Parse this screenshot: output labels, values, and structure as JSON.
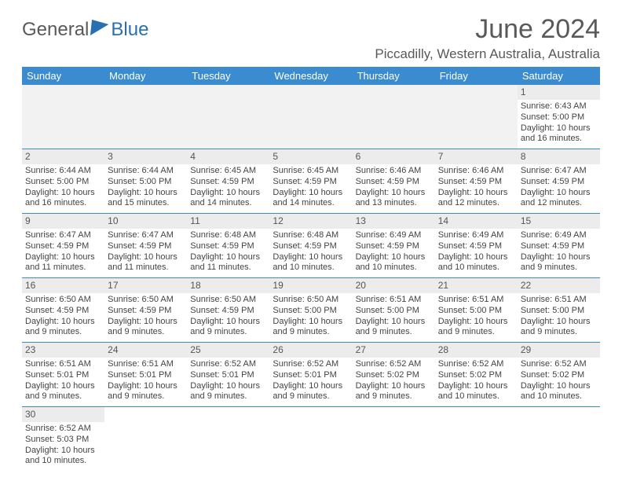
{
  "brand": {
    "a": "General",
    "b": "Blue"
  },
  "title": "June 2024",
  "location": "Piccadilly, Western Australia, Australia",
  "colors": {
    "header_bg": "#3a8bd0",
    "header_text": "#ffffff",
    "rule": "#3a8bd0",
    "daynum_bg": "#ececec",
    "body_text": "#444444",
    "title_text": "#595959"
  },
  "dayNames": [
    "Sunday",
    "Monday",
    "Tuesday",
    "Wednesday",
    "Thursday",
    "Friday",
    "Saturday"
  ],
  "firstDayIndex": 6,
  "daysInMonth": 30,
  "days": {
    "1": {
      "sunrise": "6:43 AM",
      "sunset": "5:00 PM",
      "daylight": "10 hours and 16 minutes."
    },
    "2": {
      "sunrise": "6:44 AM",
      "sunset": "5:00 PM",
      "daylight": "10 hours and 16 minutes."
    },
    "3": {
      "sunrise": "6:44 AM",
      "sunset": "5:00 PM",
      "daylight": "10 hours and 15 minutes."
    },
    "4": {
      "sunrise": "6:45 AM",
      "sunset": "4:59 PM",
      "daylight": "10 hours and 14 minutes."
    },
    "5": {
      "sunrise": "6:45 AM",
      "sunset": "4:59 PM",
      "daylight": "10 hours and 14 minutes."
    },
    "6": {
      "sunrise": "6:46 AM",
      "sunset": "4:59 PM",
      "daylight": "10 hours and 13 minutes."
    },
    "7": {
      "sunrise": "6:46 AM",
      "sunset": "4:59 PM",
      "daylight": "10 hours and 12 minutes."
    },
    "8": {
      "sunrise": "6:47 AM",
      "sunset": "4:59 PM",
      "daylight": "10 hours and 12 minutes."
    },
    "9": {
      "sunrise": "6:47 AM",
      "sunset": "4:59 PM",
      "daylight": "10 hours and 11 minutes."
    },
    "10": {
      "sunrise": "6:47 AM",
      "sunset": "4:59 PM",
      "daylight": "10 hours and 11 minutes."
    },
    "11": {
      "sunrise": "6:48 AM",
      "sunset": "4:59 PM",
      "daylight": "10 hours and 11 minutes."
    },
    "12": {
      "sunrise": "6:48 AM",
      "sunset": "4:59 PM",
      "daylight": "10 hours and 10 minutes."
    },
    "13": {
      "sunrise": "6:49 AM",
      "sunset": "4:59 PM",
      "daylight": "10 hours and 10 minutes."
    },
    "14": {
      "sunrise": "6:49 AM",
      "sunset": "4:59 PM",
      "daylight": "10 hours and 10 minutes."
    },
    "15": {
      "sunrise": "6:49 AM",
      "sunset": "4:59 PM",
      "daylight": "10 hours and 9 minutes."
    },
    "16": {
      "sunrise": "6:50 AM",
      "sunset": "4:59 PM",
      "daylight": "10 hours and 9 minutes."
    },
    "17": {
      "sunrise": "6:50 AM",
      "sunset": "4:59 PM",
      "daylight": "10 hours and 9 minutes."
    },
    "18": {
      "sunrise": "6:50 AM",
      "sunset": "4:59 PM",
      "daylight": "10 hours and 9 minutes."
    },
    "19": {
      "sunrise": "6:50 AM",
      "sunset": "5:00 PM",
      "daylight": "10 hours and 9 minutes."
    },
    "20": {
      "sunrise": "6:51 AM",
      "sunset": "5:00 PM",
      "daylight": "10 hours and 9 minutes."
    },
    "21": {
      "sunrise": "6:51 AM",
      "sunset": "5:00 PM",
      "daylight": "10 hours and 9 minutes."
    },
    "22": {
      "sunrise": "6:51 AM",
      "sunset": "5:00 PM",
      "daylight": "10 hours and 9 minutes."
    },
    "23": {
      "sunrise": "6:51 AM",
      "sunset": "5:01 PM",
      "daylight": "10 hours and 9 minutes."
    },
    "24": {
      "sunrise": "6:51 AM",
      "sunset": "5:01 PM",
      "daylight": "10 hours and 9 minutes."
    },
    "25": {
      "sunrise": "6:52 AM",
      "sunset": "5:01 PM",
      "daylight": "10 hours and 9 minutes."
    },
    "26": {
      "sunrise": "6:52 AM",
      "sunset": "5:01 PM",
      "daylight": "10 hours and 9 minutes."
    },
    "27": {
      "sunrise": "6:52 AM",
      "sunset": "5:02 PM",
      "daylight": "10 hours and 9 minutes."
    },
    "28": {
      "sunrise": "6:52 AM",
      "sunset": "5:02 PM",
      "daylight": "10 hours and 10 minutes."
    },
    "29": {
      "sunrise": "6:52 AM",
      "sunset": "5:02 PM",
      "daylight": "10 hours and 10 minutes."
    },
    "30": {
      "sunrise": "6:52 AM",
      "sunset": "5:03 PM",
      "daylight": "10 hours and 10 minutes."
    }
  },
  "labels": {
    "sunrise": "Sunrise: ",
    "sunset": "Sunset: ",
    "daylight": "Daylight: "
  }
}
